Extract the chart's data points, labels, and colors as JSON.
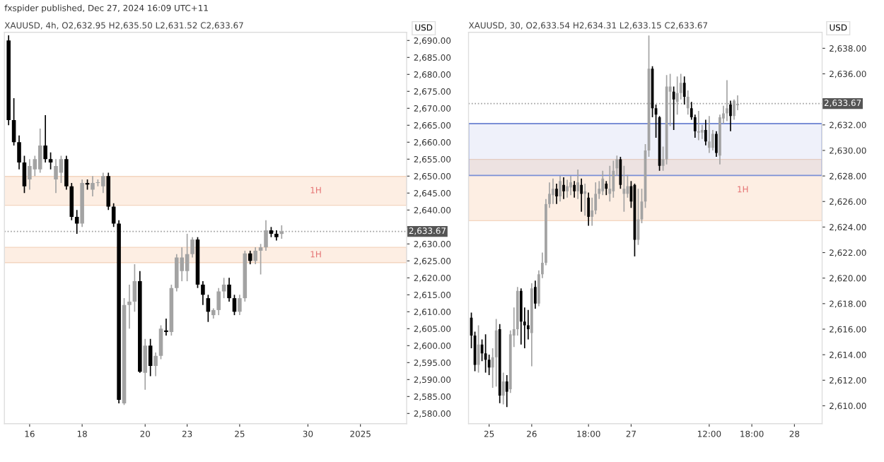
{
  "chart_data": [
    {
      "type": "candlestick",
      "title": "XAUUSD, 4h, O2,632.95 H2,635.50 L2,631.52 C2,633.67",
      "ylabel": "USD",
      "annotations": [
        "fxspider published, Dec 27, 2024 16:09 UTC+11"
      ],
      "categories": [
        null,
        null,
        null,
        null,
        "16",
        null,
        null,
        null,
        null,
        null,
        null,
        null,
        null,
        null,
        "18",
        null,
        null,
        null,
        null,
        null,
        null,
        null,
        null,
        null,
        null,
        null,
        "20",
        null,
        null,
        null,
        null,
        null,
        null,
        null,
        "23",
        null,
        null,
        null,
        null,
        null,
        null,
        null,
        null,
        null,
        "25",
        null,
        null,
        null,
        null,
        null,
        null,
        null,
        null,
        null,
        null,
        null,
        null,
        "30",
        null,
        null,
        null,
        null,
        null,
        null,
        null,
        null,
        null,
        "2025",
        null,
        null,
        null,
        null,
        null,
        null,
        null,
        null
      ],
      "ohlc": [
        [
          2690,
          2691.5,
          2665,
          2666.5
        ],
        [
          2666.5,
          2673,
          2659,
          2660
        ],
        [
          2660,
          2662,
          2652,
          2654
        ],
        [
          2654,
          2656,
          2645,
          2647
        ],
        [
          2649,
          2655,
          2646,
          2653
        ],
        [
          2652,
          2656,
          2650,
          2655
        ],
        [
          2652,
          2664,
          2651,
          2659
        ],
        [
          2659,
          2668,
          2654,
          2655
        ],
        [
          2655,
          2657,
          2652,
          2654
        ],
        [
          2649,
          2655,
          2645,
          2653
        ],
        [
          2651,
          2656,
          2648,
          2655
        ],
        [
          2655,
          2656,
          2646,
          2647
        ],
        [
          2647,
          2648,
          2637,
          2638
        ],
        [
          2638,
          2640,
          2633,
          2636
        ],
        [
          2636,
          2649,
          2635,
          2648
        ],
        [
          2648,
          2649,
          2646,
          2647.5
        ],
        [
          2646,
          2650,
          2644,
          2648
        ],
        [
          2648,
          2649,
          2647,
          2648.2
        ],
        [
          2647,
          2651,
          2645,
          2650
        ],
        [
          2650,
          2651,
          2640,
          2641
        ],
        [
          2641,
          2642,
          2635,
          2636
        ],
        [
          2636,
          2637,
          2583,
          2584
        ],
        [
          2583,
          2614,
          2582.5,
          2612
        ],
        [
          2612,
          2618,
          2605,
          2613
        ],
        [
          2613,
          2624,
          2610,
          2619
        ],
        [
          2619,
          2622,
          2592,
          2592.3
        ],
        [
          2592,
          2602,
          2587,
          2600
        ],
        [
          2600,
          2602,
          2591,
          2594
        ],
        [
          2594,
          2598,
          2591,
          2597
        ],
        [
          2597,
          2606,
          2596,
          2605
        ],
        [
          2604.5,
          2608,
          2603,
          2604
        ],
        [
          2604,
          2618,
          2603,
          2617
        ],
        [
          2617,
          2627,
          2616,
          2626
        ],
        [
          2622,
          2629,
          2619,
          2626
        ],
        [
          2622,
          2633,
          2619,
          2627
        ],
        [
          2627,
          2632,
          2626,
          2631.3
        ],
        [
          2631.3,
          2632,
          2617,
          2618
        ],
        [
          2618,
          2619,
          2612,
          2615
        ],
        [
          2614,
          2615,
          2607,
          2610
        ],
        [
          2609,
          2611,
          2608,
          2610.5
        ],
        [
          2610.5,
          2617,
          2609,
          2616
        ],
        [
          2616,
          2620,
          2614,
          2618
        ],
        [
          2618,
          2620,
          2613,
          2614
        ],
        [
          2614,
          2615,
          2609,
          2610
        ],
        [
          2610,
          2615,
          2609,
          2614
        ],
        [
          2614,
          2628,
          2613,
          2627.2
        ],
        [
          2627.2,
          2628,
          2624,
          2625
        ],
        [
          2625,
          2629,
          2624,
          2628
        ],
        [
          2628,
          2630,
          2621,
          2629
        ],
        [
          2629,
          2637,
          2628,
          2634
        ],
        [
          2634,
          2635,
          2632,
          2633
        ],
        [
          2633,
          2634,
          2631,
          2632
        ],
        [
          2632.95,
          2635.5,
          2631.52,
          2633.67
        ],
        null,
        null,
        null,
        null,
        null,
        null,
        null,
        null,
        null,
        null,
        null,
        null,
        null,
        null,
        null,
        null,
        null,
        null,
        null,
        null,
        null,
        null,
        null
      ],
      "colors": [
        "#000000",
        "#000000",
        "#000000",
        "#000000",
        "#a3a3a3",
        "#a3a3a3",
        "#a3a3a3",
        "#000000",
        "#000000",
        "#a3a3a3",
        "#a3a3a3",
        "#000000",
        "#000000",
        "#000000",
        "#a3a3a3",
        "#000000",
        "#a3a3a3",
        "#a3a3a3",
        "#a3a3a3",
        "#000000",
        "#000000",
        "#000000",
        "#a3a3a3",
        "#a3a3a3",
        "#a3a3a3",
        "#000000",
        "#a3a3a3",
        "#000000",
        "#a3a3a3",
        "#a3a3a3",
        "#000000",
        "#a3a3a3",
        "#a3a3a3",
        "#a3a3a3",
        "#a3a3a3",
        "#a3a3a3",
        "#000000",
        "#000000",
        "#000000",
        "#a3a3a3",
        "#a3a3a3",
        "#a3a3a3",
        "#000000",
        "#000000",
        "#a3a3a3",
        "#a3a3a3",
        "#000000",
        "#a3a3a3",
        "#a3a3a3",
        "#a3a3a3",
        "#000000",
        "#000000",
        "#a3a3a3",
        null,
        null,
        null,
        null,
        null,
        null,
        null,
        null,
        null,
        null,
        null,
        null,
        null,
        null,
        null,
        null,
        null,
        null,
        null,
        null,
        null,
        null,
        null
      ],
      "ylim": [
        2577,
        2692.4
      ],
      "yticks": [
        {
          "value": 2580,
          "label": "2,580.00"
        },
        {
          "value": 2585,
          "label": "2,585.00"
        },
        {
          "value": 2590,
          "label": "2,590.00"
        },
        {
          "value": 2595,
          "label": "2,595.00"
        },
        {
          "value": 2600,
          "label": "2,600.00"
        },
        {
          "value": 2605,
          "label": "2,605.00"
        },
        {
          "value": 2610,
          "label": "2,610.00"
        },
        {
          "value": 2615,
          "label": "2,615.00"
        },
        {
          "value": 2620,
          "label": "2,620.00"
        },
        {
          "value": 2625,
          "label": "2,625.00"
        },
        {
          "value": 2630,
          "label": "2,630.00"
        },
        {
          "value": 2635,
          "label": null
        },
        {
          "value": 2640,
          "label": "2,640.00"
        },
        {
          "value": 2645,
          "label": "2,645.00"
        },
        {
          "value": 2650,
          "label": "2,650.00"
        },
        {
          "value": 2655,
          "label": "2,655.00"
        },
        {
          "value": 2660,
          "label": "2,660.00"
        },
        {
          "value": 2665,
          "label": "2,665.00"
        },
        {
          "value": 2670,
          "label": "2,670.00"
        },
        {
          "value": 2675,
          "label": "2,675.00"
        },
        {
          "value": 2680,
          "label": "2,680.00"
        },
        {
          "value": 2685,
          "label": "2,685.00"
        },
        {
          "value": 2690,
          "label": "2,690.00"
        }
      ],
      "ref_lines": [
        {
          "axis": "y",
          "value": 2633.67,
          "label": "2,633.67",
          "color": "#9e9e9e",
          "line_style": "dotted"
        }
      ],
      "bands": [
        {
          "axis": "y",
          "from": 2641.4,
          "to": 2649.9,
          "label": "1H",
          "color": "#fdeee3"
        },
        {
          "axis": "y",
          "from": 2624.5,
          "to": 2629,
          "label": "1H",
          "color": "#fdeee3"
        }
      ],
      "grid": false
    },
    {
      "type": "candlestick",
      "title": "XAUUSD, 30, O2,633.54 H2,634.31 L2,633.15 C2,633.67",
      "ylabel": "USD",
      "categories": [
        null,
        null,
        null,
        null,
        null,
        "25",
        null,
        null,
        null,
        null,
        null,
        null,
        null,
        null,
        null,
        null,
        null,
        "26",
        null,
        null,
        null,
        null,
        null,
        null,
        null,
        null,
        null,
        null,
        null,
        null,
        null,
        null,
        null,
        "18:00",
        null,
        null,
        null,
        null,
        null,
        null,
        null,
        null,
        null,
        null,
        null,
        "27",
        null,
        null,
        null,
        null,
        null,
        null,
        null,
        null,
        null,
        null,
        null,
        null,
        null,
        null,
        null,
        null,
        null,
        null,
        null,
        null,
        null,
        "12:00",
        null,
        null,
        null,
        null,
        null,
        null,
        null,
        null,
        null,
        null,
        null,
        "18:00",
        null,
        null,
        null,
        null,
        null,
        null,
        null,
        null,
        null,
        null,
        null,
        "28",
        null,
        null,
        null,
        null,
        null,
        null,
        null
      ],
      "ohlc": [
        [
          2616.9,
          2617.3,
          2614.5,
          2615.5
        ],
        [
          2615.5,
          2615.8,
          2612.7,
          2613.2
        ],
        [
          2613.2,
          2616.3,
          2612.6,
          2614.8
        ],
        [
          2614.8,
          2615.2,
          2613.5,
          2614.1
        ],
        [
          2614.1,
          2615.6,
          2612.6,
          2613.6
        ],
        [
          2613.6,
          2614,
          2612.4,
          2613
        ],
        [
          2613,
          2614.5,
          2611.4,
          2613.8
        ],
        [
          2613.8,
          2616.8,
          2611.5,
          2615.9
        ],
        [
          2616,
          2616.4,
          2610.2,
          2610.8
        ],
        [
          2610.8,
          2612.6,
          2610.1,
          2611.9
        ],
        [
          2611.9,
          2612.4,
          2609.9,
          2611.1
        ],
        [
          2611.3,
          2615.9,
          2611,
          2615.6
        ],
        [
          2615.5,
          2617.7,
          2614.6,
          2616
        ],
        [
          2616,
          2619.3,
          2615.5,
          2619
        ],
        [
          2619,
          2619.2,
          2614.8,
          2616.6
        ],
        [
          2616.6,
          2617.7,
          2614.5,
          2616.3
        ],
        [
          2616.3,
          2617.5,
          2615.2,
          2616
        ],
        [
          2615.7,
          2619.6,
          2613.1,
          2619.2
        ],
        [
          2619.3,
          2619.8,
          2617.6,
          2618
        ],
        [
          2618,
          2620.6,
          2617.8,
          2620.3
        ],
        [
          2620.3,
          2622,
          2620,
          2621.2
        ],
        [
          2621.2,
          2626.2,
          2621,
          2625.8
        ],
        [
          2625.8,
          2627.5,
          2625.5,
          2626.6
        ],
        [
          2626.5,
          2627.8,
          2625.8,
          2627
        ],
        [
          2627,
          2627.4,
          2625.8,
          2626.4
        ],
        [
          2626.4,
          2628,
          2626,
          2627.6
        ],
        [
          2627.3,
          2627.9,
          2626.2,
          2626.8
        ],
        [
          2626.8,
          2627.7,
          2626.3,
          2627.2
        ],
        [
          2627.1,
          2628,
          2626.5,
          2627.5
        ],
        [
          2627.3,
          2627.6,
          2626.3,
          2626.8
        ],
        [
          2626.8,
          2628.5,
          2626.2,
          2627.5
        ],
        [
          2627.3,
          2627.8,
          2625.2,
          2626.6
        ],
        [
          2626.6,
          2627.4,
          2624.9,
          2626.8
        ],
        [
          2626.3,
          2626.7,
          2624.1,
          2624.8
        ],
        [
          2624.8,
          2626.3,
          2624.1,
          2625.3
        ],
        [
          2625.3,
          2627.5,
          2625,
          2626.6
        ],
        [
          2626.6,
          2627.6,
          2626.2,
          2627
        ],
        [
          2626.8,
          2628.4,
          2626.5,
          2627.8
        ],
        [
          2627.4,
          2627.6,
          2626.5,
          2627
        ],
        [
          2626.6,
          2628.8,
          2626,
          2627
        ],
        [
          2626.8,
          2629.2,
          2626.3,
          2628.4
        ],
        [
          2628.6,
          2629.6,
          2628,
          2629.3
        ],
        [
          2629.3,
          2629.5,
          2627,
          2627.3
        ],
        [
          2626.6,
          2628.8,
          2625.2,
          2627
        ],
        [
          2626.6,
          2628.1,
          2626.3,
          2627.2
        ],
        [
          2627.2,
          2627.6,
          2625.5,
          2626
        ],
        [
          2627.3,
          2627.4,
          2621.7,
          2623
        ],
        [
          2623,
          2627,
          2622.6,
          2624.6
        ],
        [
          2624.6,
          2627,
          2624.3,
          2626
        ],
        [
          2626,
          2630.5,
          2625.5,
          2630
        ],
        [
          2630,
          2639,
          2629.5,
          2636.4
        ],
        [
          2636.4,
          2636.6,
          2632.6,
          2633.3
        ],
        [
          2633.3,
          2633.6,
          2631,
          2632.8
        ],
        [
          2632.6,
          2632.7,
          2628.4,
          2628.8
        ],
        [
          2628.8,
          2630.3,
          2628.4,
          2629.3
        ],
        [
          2629.3,
          2635.9,
          2628.9,
          2635
        ],
        [
          2634.6,
          2636,
          2631.9,
          2635
        ],
        [
          2634.6,
          2635,
          2631.6,
          2634
        ],
        [
          2633.8,
          2635.8,
          2632.8,
          2634.5
        ],
        [
          2634.5,
          2636,
          2634,
          2635.3
        ],
        [
          2635.3,
          2635.8,
          2633.6,
          2634.2
        ],
        [
          2633.3,
          2634.7,
          2632.8,
          2634.2
        ],
        [
          2633.3,
          2633.8,
          2632.4,
          2632.6
        ],
        [
          2632.6,
          2632.8,
          2631,
          2631.5
        ],
        [
          2631.4,
          2633.1,
          2630.8,
          2631.5
        ],
        [
          2631.4,
          2632,
          2630.9,
          2631.6
        ],
        [
          2631.6,
          2632.4,
          2630.4,
          2630.7
        ],
        [
          2630.2,
          2632.7,
          2629.8,
          2630.7
        ],
        [
          2630.2,
          2631.6,
          2630,
          2631.3
        ],
        [
          2631.3,
          2631.5,
          2629.5,
          2629.8
        ],
        [
          2629.6,
          2632.8,
          2628.9,
          2632.6
        ],
        [
          2632.5,
          2633.5,
          2632.1,
          2632.9
        ],
        [
          2632.9,
          2635.5,
          2632.3,
          2633.3
        ],
        [
          2633.6,
          2633.9,
          2631.5,
          2632.7
        ],
        [
          2632.7,
          2634,
          2632.4,
          2633.9
        ],
        [
          2633.54,
          2634.31,
          2633.15,
          2633.67
        ],
        null,
        null,
        null,
        null,
        null,
        null,
        null,
        null,
        null,
        null,
        null,
        null,
        null,
        null,
        null,
        null,
        null,
        null,
        null,
        null,
        null,
        null,
        null
      ],
      "colors": [
        "#000000",
        "#000000",
        "#a3a3a3",
        "#000000",
        "#000000",
        "#000000",
        "#a3a3a3",
        "#a3a3a3",
        "#000000",
        "#a3a3a3",
        "#000000",
        "#a3a3a3",
        "#a3a3a3",
        "#a3a3a3",
        "#000000",
        "#000000",
        "#000000",
        "#a3a3a3",
        "#000000",
        "#a3a3a3",
        "#a3a3a3",
        "#a3a3a3",
        "#a3a3a3",
        "#a3a3a3",
        "#000000",
        "#a3a3a3",
        "#000000",
        "#a3a3a3",
        "#a3a3a3",
        "#000000",
        "#a3a3a3",
        "#000000",
        "#a3a3a3",
        "#000000",
        "#a3a3a3",
        "#a3a3a3",
        "#a3a3a3",
        "#a3a3a3",
        "#000000",
        "#a3a3a3",
        "#a3a3a3",
        "#a3a3a3",
        "#000000",
        "#a3a3a3",
        "#a3a3a3",
        "#000000",
        "#000000",
        "#a3a3a3",
        "#a3a3a3",
        "#a3a3a3",
        "#a3a3a3",
        "#000000",
        "#000000",
        "#000000",
        "#a3a3a3",
        "#a3a3a3",
        "#a3a3a3",
        "#000000",
        "#a3a3a3",
        "#a3a3a3",
        "#000000",
        "#a3a3a3",
        "#000000",
        "#000000",
        "#a3a3a3",
        "#a3a3a3",
        "#000000",
        "#a3a3a3",
        "#a3a3a3",
        "#000000",
        "#a3a3a3",
        "#a3a3a3",
        "#a3a3a3",
        "#000000",
        "#a3a3a3",
        "#a3a3a3",
        null,
        null,
        null,
        null,
        null,
        null,
        null,
        null,
        null,
        null,
        null,
        null,
        null,
        null,
        null,
        null,
        null,
        null,
        null,
        null,
        null,
        null,
        null
      ],
      "ylim": [
        2608.6,
        2639.25
      ],
      "yticks": [
        {
          "value": 2610,
          "label": "2,610.00"
        },
        {
          "value": 2612,
          "label": "2,612.00"
        },
        {
          "value": 2614,
          "label": "2,614.00"
        },
        {
          "value": 2616,
          "label": "2,616.00"
        },
        {
          "value": 2618,
          "label": "2,618.00"
        },
        {
          "value": 2620,
          "label": "2,620.00"
        },
        {
          "value": 2622,
          "label": "2,622.00"
        },
        {
          "value": 2624,
          "label": "2,624.00"
        },
        {
          "value": 2626,
          "label": "2,626.00"
        },
        {
          "value": 2628,
          "label": "2,628.00"
        },
        {
          "value": 2630,
          "label": "2,630.00"
        },
        {
          "value": 2632,
          "label": "2,632.00"
        },
        {
          "value": 2634,
          "label": null
        },
        {
          "value": 2636,
          "label": "2,636.00"
        },
        {
          "value": 2638,
          "label": "2,638.00"
        }
      ],
      "ref_lines": [
        {
          "axis": "y",
          "value": 2633.67,
          "label": "2,633.67",
          "color": "#9e9e9e",
          "line_style": "dotted"
        }
      ],
      "bands": [
        {
          "axis": "y",
          "from": 2624.5,
          "to": 2629.3,
          "label": "1H",
          "color": "#fdeee3"
        },
        {
          "axis": "y",
          "from": 2628.04,
          "to": 2632.1,
          "color": "#7b8fd6"
        }
      ],
      "grid": false
    }
  ]
}
